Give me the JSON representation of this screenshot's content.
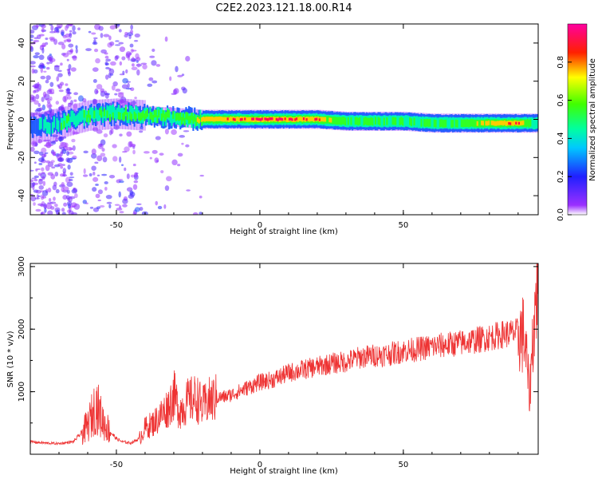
{
  "title": "C2E2.2023.121.18.00.R14",
  "colors": {
    "snr_line": "#ee3333",
    "axis": "#000000",
    "background": "#ffffff"
  },
  "chart_data": [
    {
      "type": "heatmap",
      "xlabel": "Height of straight line (km)",
      "ylabel": "Frequency (Hz)",
      "xlim": [
        -80,
        97
      ],
      "ylim": [
        -50,
        50
      ],
      "xticks": [
        -50,
        0,
        50
      ],
      "yticks": [
        -40,
        -20,
        0,
        20,
        40
      ],
      "colorbar": {
        "label": "Normalized spectral amplitude",
        "range": [
          0,
          1
        ],
        "ticks": [
          0.0,
          0.2,
          0.4,
          0.6,
          0.8
        ],
        "colormap": "hsv (purple-blue-cyan-green-yellow-red-magenta)"
      },
      "ridge": {
        "description": "Dominant spectral ridge centered near 0 Hz, scattered noise at low heights",
        "x": [
          -80,
          -70,
          -60,
          -50,
          -40,
          -30,
          -20,
          -10,
          0,
          10,
          20,
          30,
          40,
          50,
          60,
          70,
          80,
          90,
          96
        ],
        "center_hz": [
          -5,
          -2,
          2,
          3,
          2,
          1,
          0,
          0,
          0,
          0,
          0,
          -1,
          -1,
          -1,
          -2,
          -2,
          -2,
          -2,
          -2
        ],
        "amplitude": [
          0.3,
          0.45,
          0.5,
          0.5,
          0.55,
          0.55,
          0.75,
          0.85,
          0.95,
          0.9,
          0.85,
          0.5,
          0.5,
          0.5,
          0.5,
          0.55,
          0.75,
          0.85,
          0.4
        ]
      }
    },
    {
      "type": "line",
      "xlabel": "Height of straight line (km)",
      "ylabel": "SNR (10 * v/v)",
      "xlim": [
        -80,
        97
      ],
      "ylim": [
        0,
        3050
      ],
      "xticks": [
        -50,
        0,
        50
      ],
      "yticks": [
        1000,
        2000,
        3000
      ],
      "series": [
        {
          "x": [
            -80,
            -75,
            -70,
            -65,
            -60,
            -57,
            -55,
            -52,
            -50,
            -48,
            -45,
            -42,
            -40,
            -37,
            -35,
            -32,
            -30,
            -28,
            -25,
            -22,
            -20,
            -18,
            -15,
            -12,
            -10,
            -5,
            0,
            5,
            10,
            15,
            20,
            25,
            30,
            35,
            40,
            45,
            50,
            55,
            60,
            65,
            70,
            75,
            80,
            85,
            90,
            92,
            93,
            94,
            95,
            96,
            97
          ],
          "y": [
            200,
            180,
            170,
            200,
            450,
            800,
            550,
            350,
            250,
            200,
            180,
            250,
            420,
            500,
            600,
            750,
            950,
            700,
            850,
            900,
            750,
            850,
            900,
            920,
            950,
            1050,
            1150,
            1200,
            1300,
            1350,
            1400,
            1450,
            1480,
            1550,
            1580,
            1600,
            1650,
            1680,
            1720,
            1750,
            1780,
            1820,
            1870,
            1920,
            1950,
            1900,
            1500,
            900,
            1800,
            2300,
            3000
          ]
        }
      ]
    }
  ]
}
